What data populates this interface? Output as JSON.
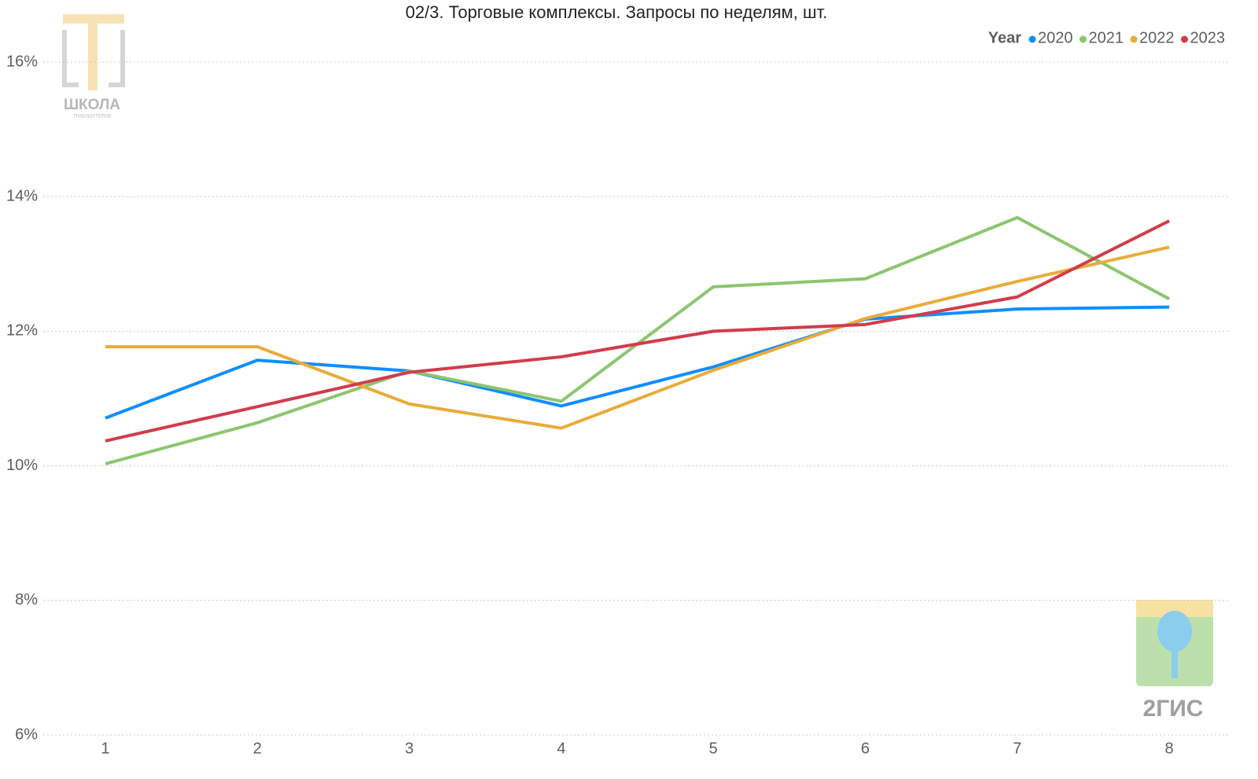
{
  "chart_data": {
    "type": "line",
    "title": "02/3. Торговые комплексы. Запросы по неделям, шт.",
    "legend_title": "Year",
    "categories": [
      "1",
      "2",
      "3",
      "4",
      "5",
      "6",
      "7",
      "8"
    ],
    "series": [
      {
        "name": "2020",
        "color": "#118dff",
        "values": [
          10.71,
          11.57,
          11.41,
          10.89,
          11.47,
          12.18,
          12.33,
          12.36
        ]
      },
      {
        "name": "2021",
        "color": "#8cc56f",
        "values": [
          10.03,
          10.64,
          11.41,
          10.96,
          12.66,
          12.78,
          13.69,
          12.48
        ]
      },
      {
        "name": "2022",
        "color": "#e8ac3a",
        "values": [
          11.77,
          11.77,
          10.92,
          10.56,
          11.42,
          12.19,
          12.74,
          13.25
        ]
      },
      {
        "name": "2023",
        "color": "#d13c4b",
        "values": [
          10.37,
          10.88,
          11.39,
          11.62,
          12.0,
          12.1,
          12.51,
          13.64
        ]
      }
    ],
    "ylim": [
      6,
      16
    ],
    "yticks": [
      {
        "value": 6,
        "label": "6%"
      },
      {
        "value": 8,
        "label": "8%"
      },
      {
        "value": 10,
        "label": "10%"
      },
      {
        "value": 12,
        "label": "12%"
      },
      {
        "value": 14,
        "label": "14%"
      },
      {
        "value": 16,
        "label": "16%"
      }
    ],
    "grid": true,
    "legend_position": "top-right",
    "logos": {
      "school": "ШКОЛА",
      "school_sub": "ТРАБЛШУТЕРОВ",
      "gis": "2ГИС"
    }
  }
}
